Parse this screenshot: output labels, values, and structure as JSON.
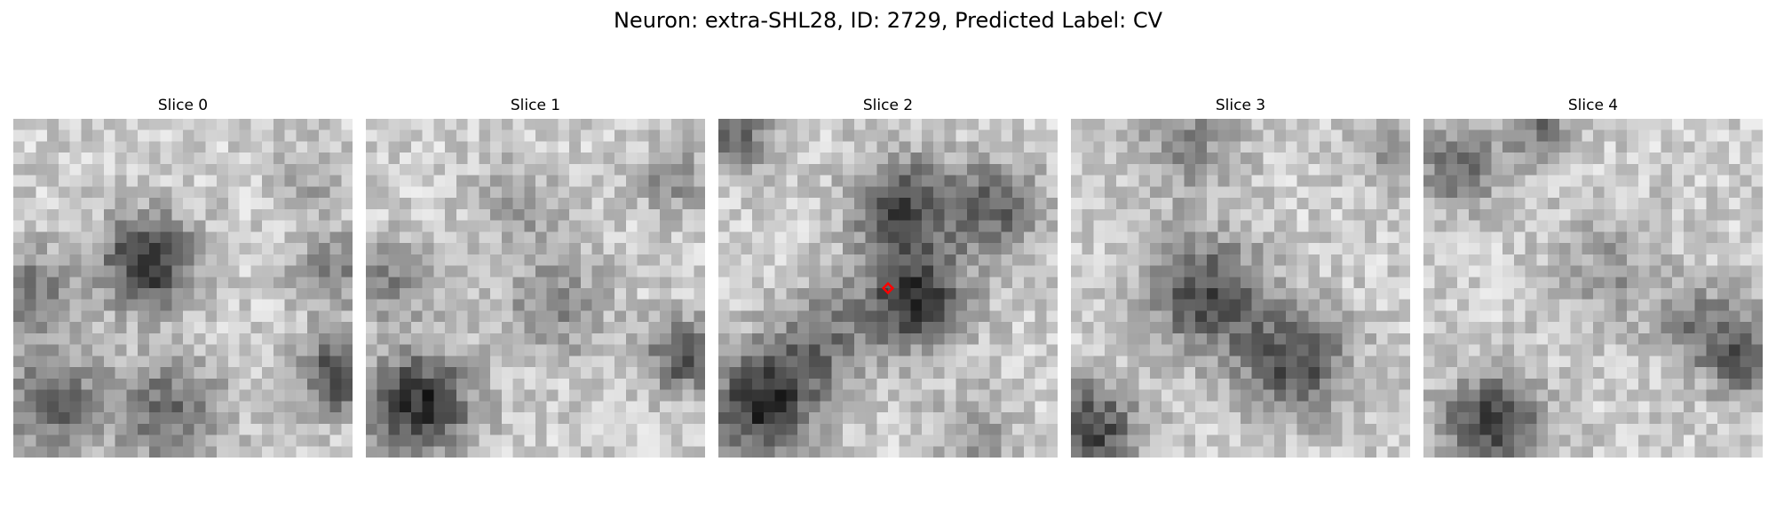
{
  "figure": {
    "title": "Neuron: extra-SHL28, ID: 2729, Predicted Label: CV"
  },
  "panels": [
    {
      "title": "Slice 0",
      "seed": 11,
      "blobs": [
        [
          0.4,
          0.42,
          0.3,
          5.0,
          0.92
        ],
        [
          0.46,
          0.86,
          0.36,
          5.0,
          0.55
        ],
        [
          0.06,
          0.52,
          0.28,
          4.0,
          0.5
        ],
        [
          0.12,
          0.84,
          0.32,
          5.0,
          0.62
        ],
        [
          0.96,
          0.76,
          0.22,
          4.0,
          0.82
        ],
        [
          0.95,
          0.45,
          0.22,
          3.0,
          0.38
        ],
        [
          0.86,
          0.18,
          0.18,
          3.0,
          0.22
        ]
      ]
    },
    {
      "title": "Slice 1",
      "seed": 23,
      "blobs": [
        [
          0.16,
          0.84,
          0.34,
          5.0,
          0.92
        ],
        [
          0.94,
          0.7,
          0.2,
          3.5,
          0.72
        ],
        [
          0.08,
          0.48,
          0.22,
          3.5,
          0.42
        ],
        [
          0.56,
          0.55,
          0.3,
          4.0,
          0.4
        ],
        [
          0.9,
          0.18,
          0.18,
          3.0,
          0.35
        ],
        [
          0.45,
          0.25,
          0.25,
          4.0,
          0.28
        ]
      ]
    },
    {
      "title": "Slice 2",
      "seed": 37,
      "blobs": [
        [
          0.58,
          0.53,
          0.3,
          4.0,
          0.88
        ],
        [
          0.54,
          0.26,
          0.28,
          3.5,
          0.72
        ],
        [
          0.82,
          0.26,
          0.26,
          3.5,
          0.58
        ],
        [
          0.13,
          0.84,
          0.34,
          5.0,
          0.92
        ],
        [
          0.3,
          0.66,
          0.3,
          4.0,
          0.48
        ],
        [
          0.05,
          0.05,
          0.18,
          3.0,
          0.55
        ],
        [
          0.75,
          0.93,
          0.2,
          3.0,
          0.35
        ]
      ]
    },
    {
      "title": "Slice 3",
      "seed": 53,
      "blobs": [
        [
          0.4,
          0.52,
          0.34,
          4.0,
          0.72
        ],
        [
          0.66,
          0.72,
          0.32,
          4.0,
          0.72
        ],
        [
          0.06,
          0.92,
          0.28,
          4.0,
          0.78
        ],
        [
          0.35,
          0.08,
          0.3,
          4.0,
          0.38
        ],
        [
          0.95,
          0.1,
          0.2,
          3.0,
          0.3
        ]
      ]
    },
    {
      "title": "Slice 4",
      "seed": 71,
      "blobs": [
        [
          0.2,
          0.9,
          0.3,
          4.0,
          0.78
        ],
        [
          0.1,
          0.15,
          0.24,
          4.0,
          0.52
        ],
        [
          0.34,
          0.02,
          0.22,
          4.0,
          0.5
        ],
        [
          0.95,
          0.7,
          0.25,
          4.0,
          0.6
        ],
        [
          0.55,
          0.45,
          0.3,
          4.0,
          0.3
        ],
        [
          0.8,
          0.6,
          0.25,
          4.0,
          0.4
        ]
      ]
    }
  ],
  "image": {
    "grid_size": 30,
    "base_gray": 205,
    "contrast": 175,
    "noise": 34
  },
  "marker": {
    "panel_index": 2,
    "x": 0.5,
    "y": 0.5,
    "shape": "diamond",
    "color": "#ff0000"
  }
}
